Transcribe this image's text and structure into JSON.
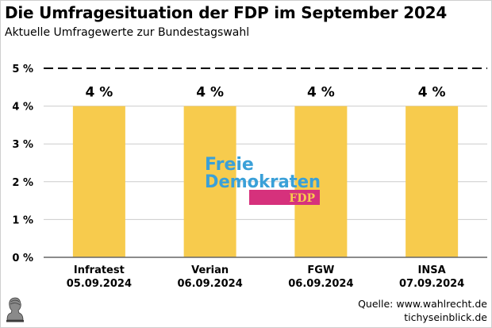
{
  "header": {
    "title": "Die Umfragesituation der FDP im September 2024",
    "subtitle": "Aktuelle Umfragewerte zur Bundestagswahl"
  },
  "chart_data": {
    "type": "bar",
    "title": "Die Umfragesituation der FDP im September 2024",
    "subtitle": "Aktuelle Umfragewerte zur Bundestagswahl",
    "categories": [
      "Infratest",
      "Verian",
      "FGW",
      "INSA"
    ],
    "dates": [
      "05.09.2024",
      "06.09.2024",
      "06.09.2024",
      "07.09.2024"
    ],
    "values": [
      4,
      4,
      4,
      4
    ],
    "data_labels": [
      "4 %",
      "4 %",
      "4 %",
      "4 %"
    ],
    "ylim": [
      0,
      5
    ],
    "yticks": [
      0,
      1,
      2,
      3,
      4,
      5
    ],
    "ytick_labels": [
      "0 %",
      "1 %",
      "2 %",
      "3 %",
      "4 %",
      "5 %"
    ],
    "threshold": {
      "value": 5,
      "style": "dashed"
    },
    "grid": true,
    "xlabel": "",
    "ylabel": "",
    "bar_color": "#f7cb4d",
    "grid_color": "#cccccc"
  },
  "logo": {
    "line1": "Freie",
    "line2": "Demokraten",
    "badge": "FDP",
    "text_color": "#3aa0d8",
    "badge_color": "#d6317c",
    "badge_text_color": "#f7cb4d"
  },
  "footer": {
    "source": "Quelle: www.wahlrecht.de",
    "site": "tichyseinblick.de"
  }
}
